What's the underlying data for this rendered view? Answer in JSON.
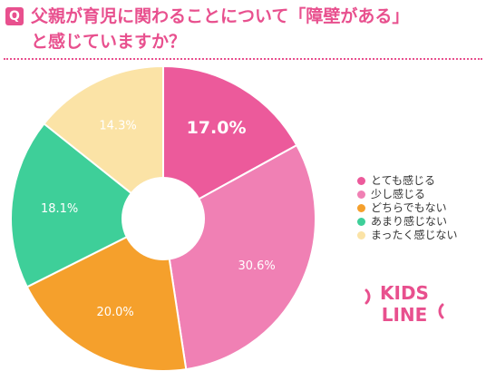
{
  "header": {
    "badge": "Q",
    "line1": "父親が育児に関わることについて「障壁がある」",
    "line2": "と感じていますか？"
  },
  "logo": {
    "line1": "KIDS",
    "line2": "LINE"
  },
  "colors": {
    "accent": "#e8508e",
    "slices": [
      "#ec5a9b",
      "#f080b4",
      "#f5a02c",
      "#3ecf99",
      "#fbe3a6"
    ]
  },
  "chart_data": {
    "type": "pie",
    "donut": true,
    "categories": [
      "とても感じる",
      "少し感じる",
      "どちらでもない",
      "あまり感じない",
      "まったく感じない"
    ],
    "values": [
      17.0,
      30.6,
      20.0,
      18.1,
      14.3
    ],
    "labels": [
      "17.0%",
      "30.6%",
      "20.0%",
      "18.1%",
      "14.3%"
    ],
    "legend_position": "right"
  }
}
